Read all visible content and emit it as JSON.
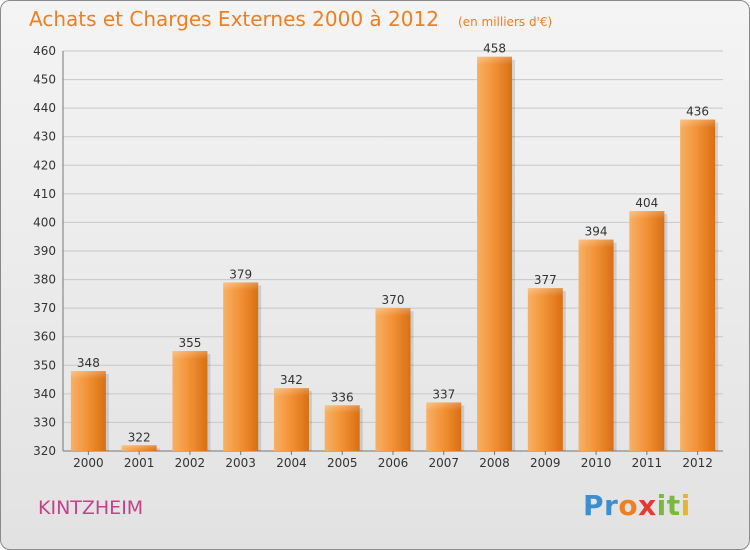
{
  "chart_data": {
    "type": "bar",
    "title": "Achats et Charges Externes 2000 à 2012",
    "unit_note": "(en milliers d'€)",
    "categories": [
      "2000",
      "2001",
      "2002",
      "2003",
      "2004",
      "2005",
      "2006",
      "2007",
      "2008",
      "2009",
      "2010",
      "2011",
      "2012"
    ],
    "values": [
      348,
      322,
      355,
      379,
      342,
      336,
      370,
      337,
      458,
      377,
      394,
      404,
      436
    ],
    "ylim": [
      320,
      460
    ],
    "yticks": [
      320,
      330,
      340,
      350,
      360,
      370,
      380,
      390,
      400,
      410,
      420,
      430,
      440,
      450,
      460
    ],
    "grid": true,
    "bar_color": "#f08a24"
  },
  "location": "KINTZHEIM",
  "logo": {
    "letters": [
      "P",
      "r",
      "o",
      "x",
      "i",
      "t",
      "i"
    ],
    "colors": [
      "#3a8fd0",
      "#3a8fd0",
      "#f07f22",
      "#e53b2c",
      "#7bb93c",
      "#7bb93c",
      "#e9b42a"
    ]
  }
}
